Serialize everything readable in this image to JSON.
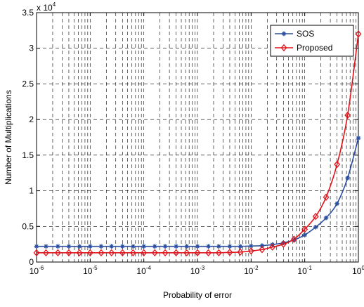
{
  "chart_data": {
    "type": "line",
    "title": "",
    "xlabel": "Probability of error",
    "ylabel": "Number of Multiplications",
    "xscale": "log",
    "xlim": [
      1e-06,
      1
    ],
    "ylim": [
      0,
      35000
    ],
    "exponent_label": {
      "base": "x 10",
      "power": "4"
    },
    "xticks": [
      {
        "value": 1e-06,
        "base": "10",
        "exp": "-6"
      },
      {
        "value": 1e-05,
        "base": "10",
        "exp": "-5"
      },
      {
        "value": 0.0001,
        "base": "10",
        "exp": "-4"
      },
      {
        "value": 0.001,
        "base": "10",
        "exp": "-3"
      },
      {
        "value": 0.01,
        "base": "10",
        "exp": "-2"
      },
      {
        "value": 0.1,
        "base": "10",
        "exp": "-1"
      },
      {
        "value": 1,
        "base": "10",
        "exp": "0"
      }
    ],
    "yticks": [
      {
        "value": 0,
        "label": "0"
      },
      {
        "value": 5000,
        "label": "0.5"
      },
      {
        "value": 10000,
        "label": "1"
      },
      {
        "value": 15000,
        "label": "1.5"
      },
      {
        "value": 20000,
        "label": "2"
      },
      {
        "value": 25000,
        "label": "2.5"
      },
      {
        "value": 30000,
        "label": "3"
      },
      {
        "value": 35000,
        "label": "3.5"
      }
    ],
    "grid": true,
    "legend_position": "top-right",
    "x": [
      1e-06,
      1.5e-06,
      2.5e-06,
      4e-06,
      6.3e-06,
      1e-05,
      1.6e-05,
      2.5e-05,
      4e-05,
      6.3e-05,
      0.0001,
      0.00016,
      0.00025,
      0.0004,
      0.00063,
      0.001,
      0.0016,
      0.0025,
      0.004,
      0.0063,
      0.01,
      0.016,
      0.025,
      0.04,
      0.063,
      0.1,
      0.16,
      0.25,
      0.4,
      0.63,
      1
    ],
    "series": [
      {
        "name": "SOS",
        "color": "#2b4fa0",
        "marker": "star",
        "values": [
          2200,
          2200,
          2200,
          2200,
          2200,
          2200,
          2200,
          2200,
          2200,
          2200,
          2200,
          2200,
          2200,
          2200,
          2200,
          2200,
          2200,
          2200,
          2200,
          2200,
          2250,
          2300,
          2450,
          2700,
          3100,
          3800,
          4900,
          6200,
          8200,
          11800,
          17400
        ]
      },
      {
        "name": "Proposed",
        "color": "#e0151c",
        "marker": "diamond",
        "values": [
          1300,
          1300,
          1300,
          1300,
          1300,
          1300,
          1300,
          1300,
          1300,
          1300,
          1300,
          1300,
          1300,
          1300,
          1300,
          1300,
          1300,
          1300,
          1350,
          1400,
          1550,
          1750,
          2100,
          2500,
          3200,
          4600,
          6400,
          9100,
          13700,
          20600,
          32000
        ]
      }
    ]
  }
}
